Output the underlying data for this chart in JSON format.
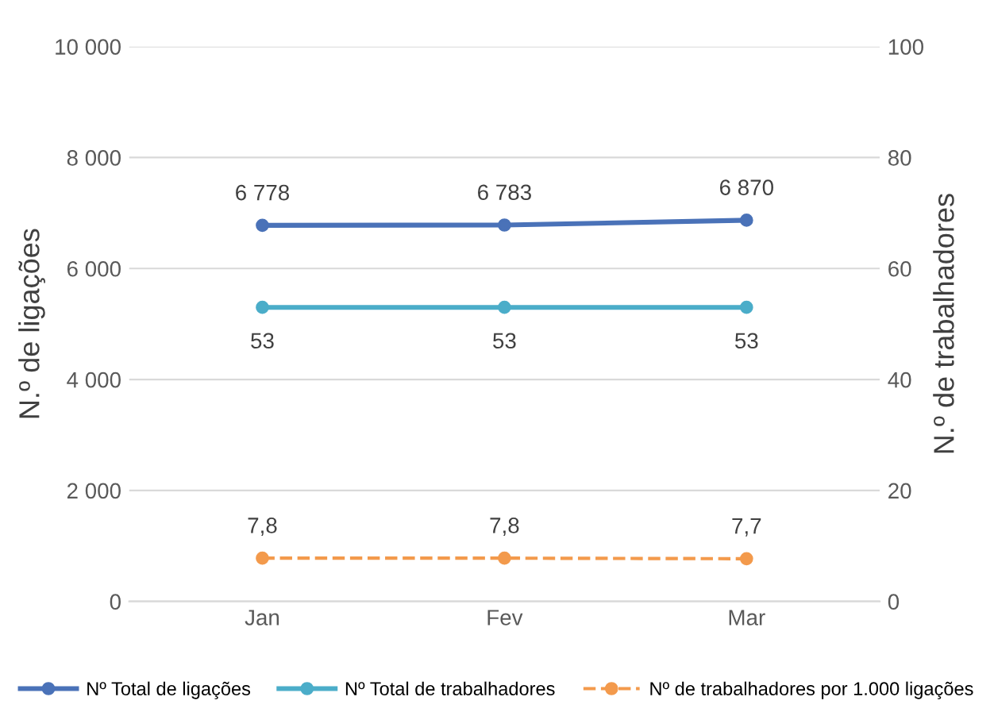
{
  "chart_data": {
    "type": "line",
    "categories": [
      "Jan",
      "Fev",
      "Mar"
    ],
    "ylabel": "N.º de ligações",
    "y2label": "N.º de trabalhadores",
    "ylim": [
      0,
      10000
    ],
    "yticks": [
      {
        "value": 0,
        "label": "0"
      },
      {
        "value": 2000,
        "label": "2 000"
      },
      {
        "value": 4000,
        "label": "4 000"
      },
      {
        "value": 6000,
        "label": "6 000"
      },
      {
        "value": 8000,
        "label": "8 000"
      },
      {
        "value": 10000,
        "label": "10 000"
      }
    ],
    "y2lim": [
      0,
      100
    ],
    "y2ticks": [
      0,
      20,
      40,
      60,
      80,
      100
    ],
    "grid": "y",
    "legend": "bottom",
    "marker": "circle",
    "series": [
      {
        "name": "Nº Total de ligações",
        "color": "#4a72b8",
        "values": [
          6778,
          6783,
          6870
        ],
        "value_labels": [
          "6 778",
          "6 783",
          "6 870"
        ],
        "line_style": "solid"
      },
      {
        "name": "Nº Total de trabalhadores",
        "color": "#4badc9",
        "values": [
          53,
          53,
          53
        ],
        "value_labels": [
          "53",
          "53",
          "53"
        ],
        "axis": "y2",
        "line_style": "solid"
      },
      {
        "name": "Nº de trabalhadores por 1.000 ligações",
        "color": "#f39a4c",
        "values": [
          7.8,
          7.8,
          7.7
        ],
        "value_labels": [
          "7,8",
          "7,8",
          "7,7"
        ],
        "axis": "y2",
        "line_style": "dashed"
      }
    ]
  }
}
